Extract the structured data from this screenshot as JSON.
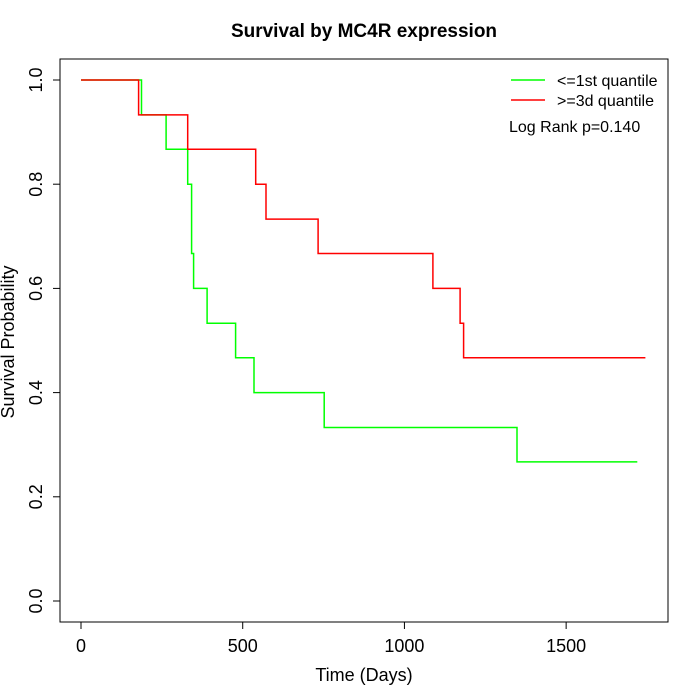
{
  "chart_data": {
    "type": "line",
    "step": true,
    "title": "Survival by MC4R expression",
    "xlabel": "Time (Days)",
    "ylabel": "Survival Probability",
    "xlim": [
      0,
      1750
    ],
    "ylim": [
      0,
      1
    ],
    "xticks": [
      0,
      500,
      1000,
      1500
    ],
    "yticks": [
      0.0,
      0.2,
      0.4,
      0.6,
      0.8,
      1.0
    ],
    "xtick_labels": [
      "0",
      "500",
      "1000",
      "1500"
    ],
    "ytick_labels": [
      "0.0",
      "0.2",
      "0.4",
      "0.6",
      "0.8",
      "1.0"
    ],
    "legend_position": "top-right",
    "annotation": "Log Rank p=0.140",
    "series": [
      {
        "name": "<=1st quantile",
        "color": "#00ff00",
        "points": [
          [
            0,
            1.0
          ],
          [
            187,
            1.0
          ],
          [
            187,
            0.933
          ],
          [
            263,
            0.933
          ],
          [
            263,
            0.867
          ],
          [
            330,
            0.867
          ],
          [
            330,
            0.8
          ],
          [
            342,
            0.8
          ],
          [
            342,
            0.667
          ],
          [
            348,
            0.667
          ],
          [
            348,
            0.6
          ],
          [
            390,
            0.6
          ],
          [
            390,
            0.533
          ],
          [
            478,
            0.533
          ],
          [
            478,
            0.467
          ],
          [
            535,
            0.467
          ],
          [
            535,
            0.4
          ],
          [
            752,
            0.4
          ],
          [
            752,
            0.333
          ],
          [
            1348,
            0.333
          ],
          [
            1348,
            0.267
          ],
          [
            1720,
            0.267
          ]
        ]
      },
      {
        "name": ">=3d quantile",
        "color": "#ff0000",
        "points": [
          [
            0,
            1.0
          ],
          [
            178,
            1.0
          ],
          [
            178,
            0.933
          ],
          [
            330,
            0.933
          ],
          [
            330,
            0.867
          ],
          [
            540,
            0.867
          ],
          [
            540,
            0.8
          ],
          [
            572,
            0.8
          ],
          [
            572,
            0.733
          ],
          [
            733,
            0.733
          ],
          [
            733,
            0.667
          ],
          [
            1088,
            0.667
          ],
          [
            1088,
            0.6
          ],
          [
            1172,
            0.6
          ],
          [
            1172,
            0.533
          ],
          [
            1183,
            0.533
          ],
          [
            1183,
            0.467
          ],
          [
            1745,
            0.467
          ]
        ]
      }
    ]
  }
}
